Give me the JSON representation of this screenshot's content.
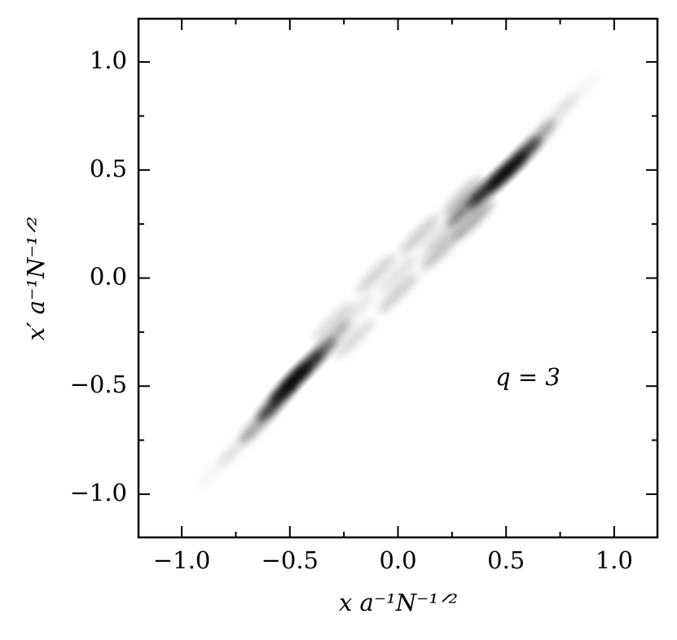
{
  "chart_data": {
    "type": "density",
    "xlabel": "x a⁻¹N⁻¹ᐟ²",
    "ylabel": "x′ a⁻¹N⁻¹ᐟ²",
    "annotation": "q = 3",
    "color": "#000000",
    "x": [
      -0.84,
      -0.74,
      -0.64,
      -0.56,
      -0.5,
      -0.44,
      -0.38,
      -0.31,
      -0.2,
      0.0,
      0.2,
      0.35,
      -0.3,
      -0.1,
      0.1,
      0.3,
      -0.2,
      0.0,
      0.2,
      0.32,
      0.42,
      0.5,
      0.57,
      0.64,
      0.74,
      0.84
    ],
    "y": [
      -0.88,
      -0.78,
      -0.67,
      -0.57,
      -0.49,
      -0.43,
      -0.37,
      -0.29,
      -0.28,
      -0.07,
      0.13,
      0.27,
      -0.2,
      0.02,
      0.2,
      0.38,
      -0.16,
      0.02,
      0.2,
      0.33,
      0.42,
      0.49,
      0.56,
      0.64,
      0.76,
      0.86
    ],
    "values": [
      0.04,
      0.1,
      0.35,
      0.75,
      0.95,
      0.8,
      0.5,
      0.3,
      0.15,
      0.2,
      0.25,
      0.35,
      0.15,
      0.18,
      0.2,
      0.25,
      0.1,
      0.12,
      0.15,
      0.5,
      0.8,
      0.95,
      0.75,
      0.35,
      0.1,
      0.04
    ],
    "xlim": [
      -1.2,
      1.2
    ],
    "ylim": [
      -1.2,
      1.2
    ],
    "xticks": [
      {
        "value": -1,
        "label": "−1.0"
      },
      {
        "value": -0.5,
        "label": "−0.5"
      },
      {
        "value": 0,
        "label": "0.0"
      },
      0.5,
      {
        "value": 1,
        "label": "1.0"
      }
    ],
    "yticks": [
      {
        "value": -1,
        "label": "−1.0"
      },
      {
        "value": -0.5,
        "label": "−0.5"
      },
      {
        "value": 0,
        "label": "0.0"
      },
      0.5,
      {
        "value": 1,
        "label": "1.0"
      }
    ],
    "xminor": [
      -0.75,
      -0.25,
      0.25,
      0.75
    ],
    "yminor": [
      -0.75,
      -0.25,
      0.25,
      0.75
    ]
  }
}
